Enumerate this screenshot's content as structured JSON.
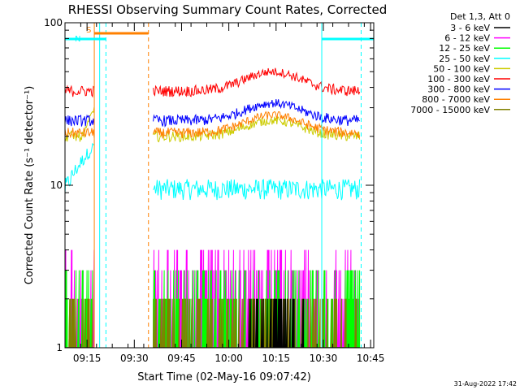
{
  "chart_data": {
    "type": "line",
    "title": "RHESSI Observing Summary Count Rates, Corrected",
    "xlabel": "Start Time (02-May-16 09:07:42)",
    "ylabel": "Corrected Count Rate (s⁻¹ detector⁻¹)",
    "yscale": "log",
    "ylim": [
      1,
      100
    ],
    "y_tick_labels": [
      "100",
      "10",
      "1"
    ],
    "x_range_minutes": [
      0,
      98
    ],
    "x_ticks": [
      {
        "minute": 7,
        "label": "09:15"
      },
      {
        "minute": 22,
        "label": "09:30"
      },
      {
        "minute": 37,
        "label": "09:45"
      },
      {
        "minute": 52,
        "label": "10:00"
      },
      {
        "minute": 67,
        "label": "10:15"
      },
      {
        "minute": 82,
        "label": "10:30"
      },
      {
        "minute": 97,
        "label": "10:45"
      }
    ],
    "legend_header": "Det 1,3, Att 0",
    "series": [
      {
        "name": "3 - 6 keV",
        "color": "#000000",
        "base_value": 1.5,
        "noise": 0.5,
        "flare_peak": 0.3
      },
      {
        "name": "6 - 12 keV",
        "color": "#ff00ff",
        "base_value": 3.2,
        "noise": 0.7,
        "flare_peak": 0.0
      },
      {
        "name": "12 - 25 keV",
        "color": "#00ff00",
        "base_value": 2.6,
        "noise": 0.6,
        "flare_peak": 0.0
      },
      {
        "name": "25 - 50 keV",
        "color": "#00ffff",
        "base_value": 9.5,
        "noise": 1.4,
        "flare_peak": 0.0
      },
      {
        "name": "50 - 100 keV",
        "color": "#cccc00",
        "base_value": 20,
        "noise": 1.5,
        "flare_peak": 5
      },
      {
        "name": "100 - 300 keV",
        "color": "#ff0000",
        "base_value": 38,
        "noise": 3.0,
        "flare_peak": 12
      },
      {
        "name": "300 - 800 keV",
        "color": "#0000ff",
        "base_value": 25,
        "noise": 2.0,
        "flare_peak": 7
      },
      {
        "name": "800 - 7000 keV",
        "color": "#ff8000",
        "base_value": 21,
        "noise": 1.6,
        "flare_peak": 6
      },
      {
        "name": "7000 - 15000 keV",
        "color": "#808000",
        "base_value": 1.9,
        "noise": 0.5,
        "flare_peak": 0.0
      }
    ],
    "data_segments": [
      [
        0,
        9.3
      ],
      [
        28,
        93.5
      ]
    ],
    "flare_peak_minute": 66,
    "annotations": [
      {
        "text": "S",
        "color": "#ff8000",
        "span_minutes": [
          9.3,
          26.5
        ]
      },
      {
        "text": "N",
        "color": "#00ffff",
        "span_minutes": [
          0,
          13
        ]
      },
      {
        "text": "",
        "color": "#00ffff",
        "span_minutes": [
          81.5,
          98
        ]
      }
    ],
    "marker_lines": [
      {
        "minute": 9.3,
        "color": "#ff8000",
        "style": "solid"
      },
      {
        "minute": 26.5,
        "color": "#ff8000",
        "style": "dashed"
      },
      {
        "minute": 11,
        "color": "#00ffff",
        "style": "solid"
      },
      {
        "minute": 13,
        "color": "#00ffff",
        "style": "dashed"
      },
      {
        "minute": 81.5,
        "color": "#00ffff",
        "style": "solid"
      },
      {
        "minute": 94,
        "color": "#00ffff",
        "style": "dashed"
      }
    ]
  },
  "footer": {
    "timestamp": "31-Aug-2022 17:42"
  }
}
